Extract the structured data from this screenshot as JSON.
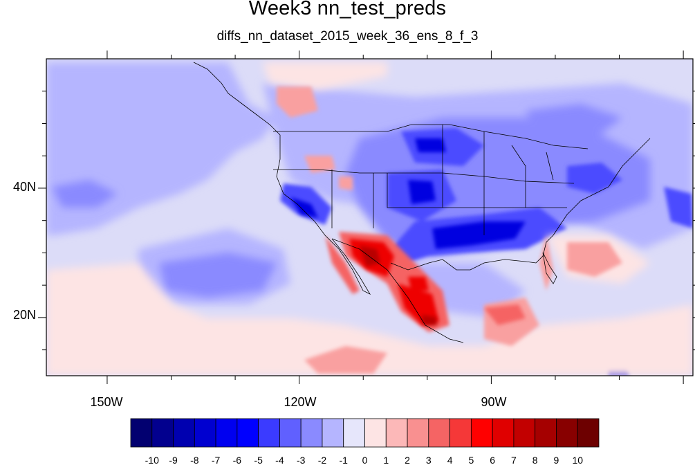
{
  "title": "Week3 nn_test_preds",
  "subtitle": "diffs_nn_dataset_2015_week_36_ens_8_f_3",
  "axes": {
    "lon_labels": [
      {
        "value": -150,
        "text": "150W"
      },
      {
        "value": -120,
        "text": "120W"
      },
      {
        "value": -90,
        "text": "90W"
      }
    ],
    "lat_labels": [
      {
        "value": 40,
        "text": "40N"
      },
      {
        "value": 20,
        "text": "20N"
      }
    ],
    "lon_range": [
      -159.5,
      -58.5
    ],
    "lat_range": [
      11,
      60
    ]
  },
  "colorbar": {
    "levels": [
      "-10",
      "-9",
      "-8",
      "-7",
      "-6",
      "-5",
      "-4",
      "-3",
      "-2",
      "-1",
      "0",
      "1",
      "2",
      "3",
      "4",
      "5",
      "6",
      "7",
      "8",
      "9",
      "10"
    ],
    "colors": [
      "#020070",
      "#02008e",
      "#0000b0",
      "#0000d0",
      "#0000f0",
      "#0000ff",
      "#3b3bff",
      "#6060ff",
      "#8a8aff",
      "#b5b5ff",
      "#e6e6fb",
      "#fde4e4",
      "#fcb8b8",
      "#f99090",
      "#f56464",
      "#f53838",
      "#ff0000",
      "#e00000",
      "#c20000",
      "#a50000",
      "#880000",
      "#6d0000"
    ]
  },
  "map": {
    "background_color": "#dcdcf8",
    "domain": "North Pacific / North America / Gulf of Mexico"
  }
}
